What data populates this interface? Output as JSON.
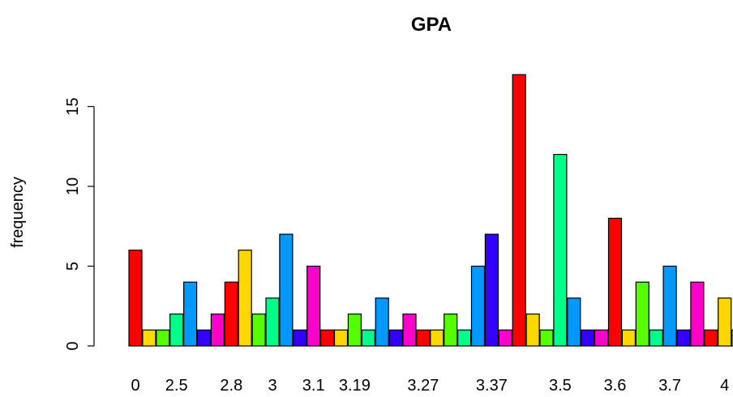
{
  "chart_data": {
    "type": "bar",
    "title": "GPA",
    "xlabel": "",
    "ylabel": "frequency",
    "ylim": [
      0,
      17
    ],
    "yticks": [
      0,
      5,
      10,
      15
    ],
    "grid": false,
    "x_tick_labels": [
      "0",
      "2.5",
      "2.8",
      "3",
      "3.1",
      "3.19",
      "3.27",
      "3.37",
      "3.5",
      "3.6",
      "3.7",
      "4"
    ],
    "values": [
      6,
      1,
      1,
      2,
      4,
      1,
      2,
      4,
      6,
      2,
      3,
      7,
      1,
      5,
      1,
      1,
      2,
      1,
      3,
      1,
      2,
      1,
      1,
      2,
      1,
      5,
      7,
      1,
      17,
      2,
      1,
      12,
      3,
      1,
      1,
      8,
      1,
      4,
      1,
      5,
      1,
      4,
      1,
      3,
      1
    ],
    "colors": [
      "#FF0000",
      "#FFD700",
      "#55FF00",
      "#00FF88",
      "#0099FF",
      "#3300FF",
      "#FF00CC"
    ]
  }
}
